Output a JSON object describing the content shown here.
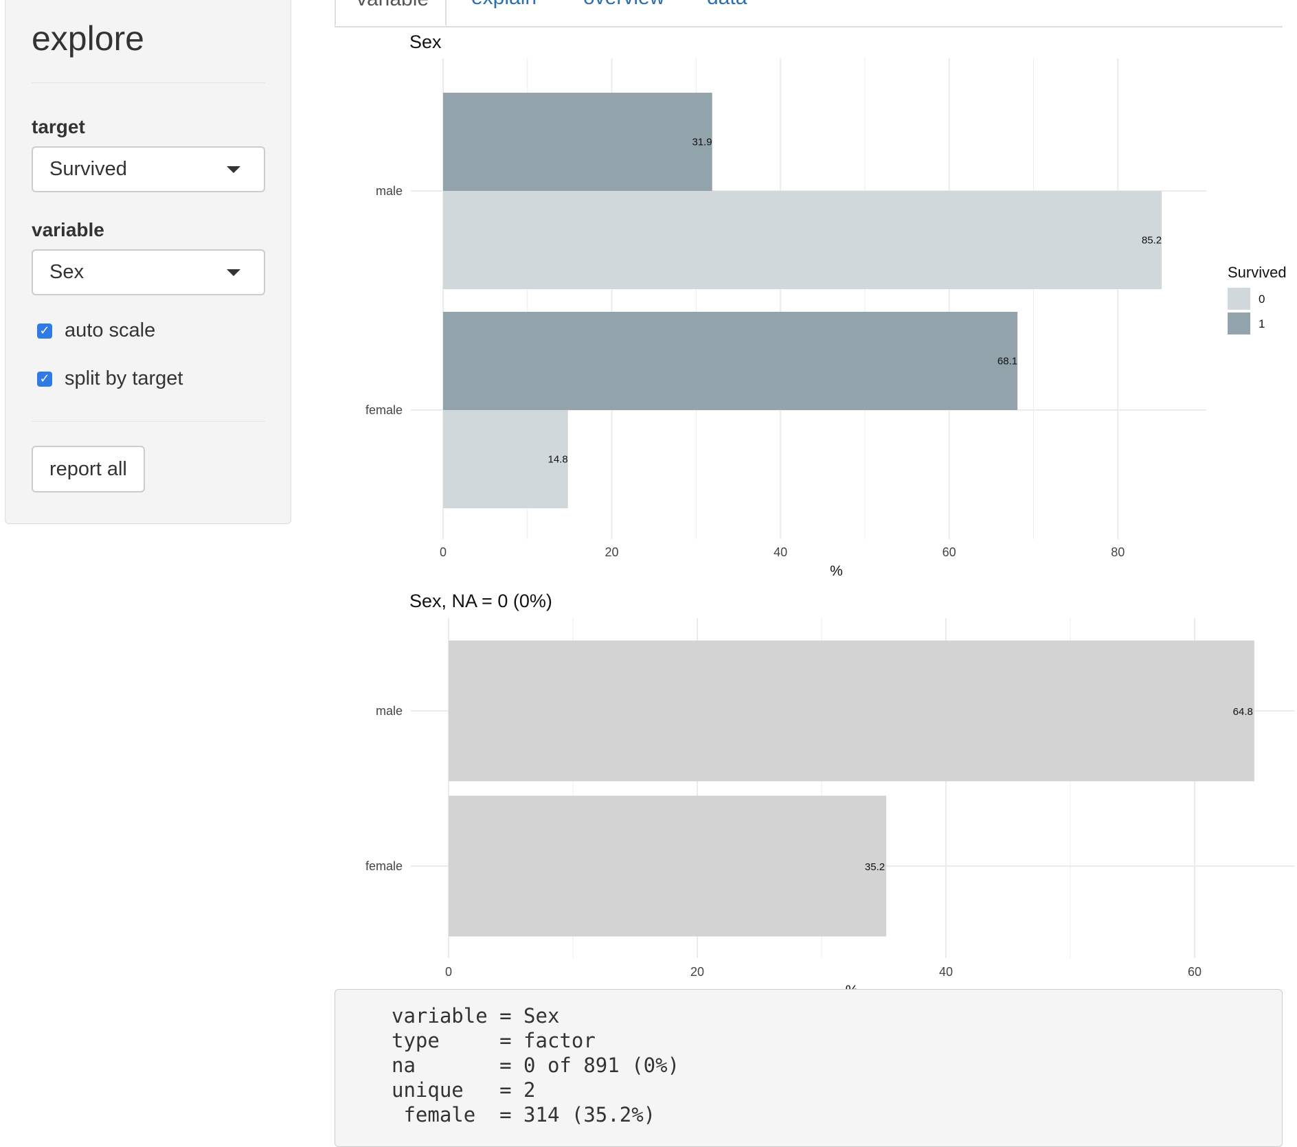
{
  "sidebar": {
    "title": "explore",
    "target_label": "target",
    "target_value": "Survived",
    "variable_label": "variable",
    "variable_value": "Sex",
    "checkbox_auto_scale": "auto scale",
    "checkbox_split_by_target": "split by target",
    "report_button": "report all"
  },
  "tabs": [
    "variable",
    "explain",
    "overview",
    "data"
  ],
  "chart_data": [
    {
      "type": "bar",
      "orientation": "horizontal",
      "title": "Sex",
      "xlabel": "%",
      "ylabel": "",
      "categories": [
        "male",
        "female"
      ],
      "series": [
        {
          "name": "0",
          "color": "#d0d8dc",
          "values": [
            85.2,
            14.8
          ]
        },
        {
          "name": "1",
          "color": "#93a3ac",
          "values": [
            31.9,
            68.1
          ]
        }
      ],
      "xlim": [
        0,
        90
      ],
      "xticks": [
        0,
        20,
        40,
        60,
        80
      ],
      "legend": {
        "title": "Survived",
        "position": "right"
      },
      "grid": true
    },
    {
      "type": "bar",
      "orientation": "horizontal",
      "title": "Sex, NA = 0 (0%)",
      "xlabel": "%",
      "ylabel": "",
      "categories": [
        "male",
        "female"
      ],
      "series": [
        {
          "color": "#d3d3d3",
          "values": [
            64.8,
            35.2
          ]
        }
      ],
      "xlim": [
        0,
        68
      ],
      "xticks": [
        0,
        20,
        40,
        60
      ],
      "grid": true
    }
  ],
  "summary": {
    "lines": [
      "variable = Sex",
      "type     = factor",
      "na       = 0 of 891 (0%)",
      "unique   = 2",
      " female  = 314 (35.2%)"
    ]
  }
}
